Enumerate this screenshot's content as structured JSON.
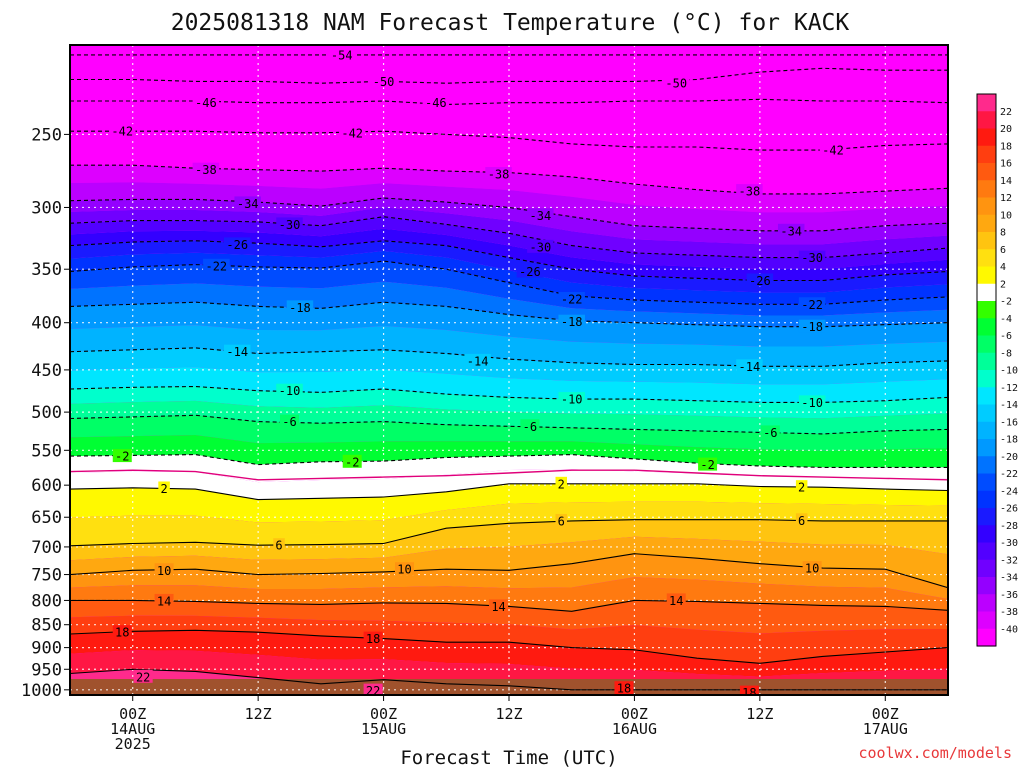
{
  "page": {
    "title": "2025081318 NAM Forecast Temperature (°C) for KACK",
    "credit": "coolwx.com/models"
  },
  "chart_data": {
    "type": "heatmap",
    "title": "2025081318 NAM Forecast Temperature (°C) for KACK",
    "xlabel": "Forecast Time (UTC)",
    "ylabel": "",
    "y_scale": "log-pressure",
    "y_axis_unit": "hPa",
    "y_ticks": [
      250,
      300,
      350,
      400,
      450,
      500,
      550,
      600,
      650,
      700,
      750,
      800,
      850,
      900,
      950,
      1000
    ],
    "ylim_hpa": [
      200,
      1013
    ],
    "x_ticks": [
      {
        "hour": 6,
        "lines": [
          "00Z",
          "14AUG",
          "2025"
        ]
      },
      {
        "hour": 18,
        "lines": [
          "12Z"
        ]
      },
      {
        "hour": 30,
        "lines": [
          "00Z",
          "15AUG"
        ]
      },
      {
        "hour": 42,
        "lines": [
          "12Z"
        ]
      },
      {
        "hour": 54,
        "lines": [
          "00Z",
          "16AUG"
        ]
      },
      {
        "hour": 66,
        "lines": [
          "12Z"
        ]
      },
      {
        "hour": 78,
        "lines": [
          "00Z",
          "17AUG"
        ]
      }
    ],
    "xlim_hours": [
      0,
      84
    ],
    "grid": true,
    "colorbar": {
      "labels": [
        22,
        20,
        18,
        16,
        14,
        12,
        10,
        8,
        6,
        4,
        2,
        -2,
        -4,
        -6,
        -8,
        -10,
        -12,
        -14,
        -16,
        -18,
        -20,
        -22,
        -24,
        -26,
        -28,
        -30,
        -32,
        -34,
        -36,
        -38,
        -40
      ],
      "colors": [
        "#ff2a8c",
        "#ff1744",
        "#ff1a10",
        "#ff3e10",
        "#ff5a10",
        "#ff7a10",
        "#ff9410",
        "#ffa810",
        "#ffc410",
        "#ffe010",
        "#fff900",
        "#ffffff",
        "#33ff00",
        "#00ff33",
        "#00ff66",
        "#00ff99",
        "#00ffcc",
        "#00e6ff",
        "#00ccff",
        "#00b3ff",
        "#0099ff",
        "#0073ff",
        "#004cff",
        "#0033ff",
        "#1a1aff",
        "#3300ff",
        "#5200ff",
        "#7000ff",
        "#9400ff",
        "#bb00ff",
        "#dd00ff",
        "#ff00ff"
      ]
    },
    "isotherms": [
      {
        "temp": -54,
        "hpa": [
          205,
          205,
          205,
          205,
          205,
          205,
          205,
          205,
          205,
          205,
          205,
          205,
          205,
          205,
          205
        ]
      },
      {
        "temp": -50,
        "hpa": [
          218,
          218,
          219,
          219,
          220,
          219,
          220,
          219,
          219,
          219,
          218,
          214,
          212,
          213,
          213
        ]
      },
      {
        "temp": -46,
        "hpa": [
          230,
          230,
          230,
          231,
          231,
          230,
          232,
          231,
          231,
          230,
          230,
          229,
          230,
          230,
          231
        ]
      },
      {
        "temp": -42,
        "hpa": [
          248,
          248,
          248,
          249,
          249,
          248,
          250,
          252,
          256,
          258,
          258,
          260,
          260,
          257,
          256
        ]
      },
      {
        "temp": -38,
        "hpa": [
          270,
          270,
          272,
          273,
          274,
          272,
          274,
          275,
          278,
          283,
          287,
          290,
          290,
          288,
          286
        ]
      },
      {
        "temp": -34,
        "hpa": [
          295,
          294,
          294,
          296,
          299,
          293,
          296,
          300,
          307,
          314,
          316,
          318,
          318,
          314,
          312
        ]
      },
      {
        "temp": -30,
        "hpa": [
          312,
          310,
          310,
          311,
          314,
          307,
          313,
          320,
          330,
          336,
          338,
          340,
          340,
          336,
          332
        ]
      },
      {
        "temp": -26,
        "hpa": [
          330,
          327,
          326,
          328,
          331,
          326,
          330,
          340,
          350,
          356,
          358,
          360,
          360,
          355,
          352
        ]
      },
      {
        "temp": -22,
        "hpa": [
          352,
          348,
          346,
          348,
          349,
          343,
          350,
          362,
          374,
          378,
          380,
          382,
          382,
          378,
          375
        ]
      },
      {
        "temp": -18,
        "hpa": [
          384,
          382,
          380,
          384,
          386,
          380,
          384,
          392,
          398,
          400,
          402,
          404,
          404,
          402,
          400
        ]
      },
      {
        "temp": -14,
        "hpa": [
          430,
          428,
          426,
          432,
          430,
          428,
          432,
          438,
          442,
          444,
          444,
          446,
          446,
          442,
          440
        ]
      },
      {
        "temp": -10,
        "hpa": [
          472,
          470,
          469,
          474,
          476,
          472,
          478,
          482,
          484,
          484,
          486,
          488,
          488,
          486,
          482
        ]
      },
      {
        "temp": -6,
        "hpa": [
          508,
          506,
          504,
          512,
          514,
          512,
          516,
          518,
          520,
          522,
          524,
          526,
          528,
          524,
          522
        ]
      },
      {
        "temp": -2,
        "hpa": [
          558,
          557,
          556,
          570,
          566,
          565,
          560,
          558,
          556,
          562,
          568,
          572,
          574,
          574,
          574
        ]
      },
      {
        "temp": 2,
        "hpa": [
          606,
          604,
          606,
          622,
          620,
          618,
          610,
          598,
          598,
          598,
          598,
          602,
          603,
          606,
          608
        ]
      },
      {
        "temp": 6,
        "hpa": [
          698,
          694,
          692,
          697,
          696,
          694,
          668,
          660,
          656,
          654,
          654,
          654,
          656,
          656,
          656
        ]
      },
      {
        "temp": 10,
        "hpa": [
          750,
          742,
          740,
          750,
          748,
          745,
          740,
          742,
          730,
          712,
          720,
          730,
          738,
          740,
          775
        ]
      },
      {
        "temp": 14,
        "hpa": [
          800,
          800,
          802,
          806,
          808,
          805,
          806,
          812,
          822,
          800,
          802,
          806,
          810,
          812,
          820
        ]
      },
      {
        "temp": 18,
        "hpa": [
          870,
          864,
          862,
          866,
          874,
          880,
          888,
          888,
          900,
          905,
          924,
          936,
          920,
          910,
          900
        ]
      },
      {
        "temp": 22,
        "hpa": [
          960,
          950,
          955,
          970,
          985,
          975,
          985,
          990,
          1000,
          1000,
          1000,
          1000,
          1000,
          1000,
          1000
        ]
      }
    ],
    "freezing_level_hpa": [
      580,
      578,
      580,
      592,
      590,
      588,
      586,
      582,
      578,
      578,
      582,
      586,
      588,
      590,
      592
    ],
    "contour_labels": [
      {
        "text": "-54",
        "hour": 26,
        "hpa": 205
      },
      {
        "text": "-50",
        "hour": 30,
        "hpa": 219
      },
      {
        "text": "-50",
        "hour": 58,
        "hpa": 220
      },
      {
        "text": "-46",
        "hour": 13,
        "hpa": 231
      },
      {
        "text": "-46",
        "hour": 35,
        "hpa": 231
      },
      {
        "text": "-42",
        "hour": 5,
        "hpa": 248
      },
      {
        "text": "-42",
        "hour": 27,
        "hpa": 249
      },
      {
        "text": "-42",
        "hour": 73,
        "hpa": 260
      },
      {
        "text": "-38",
        "hour": 13,
        "hpa": 273
      },
      {
        "text": "-38",
        "hour": 41,
        "hpa": 276
      },
      {
        "text": "-38",
        "hour": 65,
        "hpa": 288
      },
      {
        "text": "-34",
        "hour": 17,
        "hpa": 297
      },
      {
        "text": "-34",
        "hour": 45,
        "hpa": 306
      },
      {
        "text": "-34",
        "hour": 69,
        "hpa": 318
      },
      {
        "text": "-30",
        "hour": 21,
        "hpa": 313
      },
      {
        "text": "-30",
        "hour": 45,
        "hpa": 331
      },
      {
        "text": "-30",
        "hour": 71,
        "hpa": 340
      },
      {
        "text": "-26",
        "hour": 16,
        "hpa": 329
      },
      {
        "text": "-26",
        "hour": 44,
        "hpa": 352
      },
      {
        "text": "-26",
        "hour": 66,
        "hpa": 360
      },
      {
        "text": "-22",
        "hour": 14,
        "hpa": 347
      },
      {
        "text": "-22",
        "hour": 48,
        "hpa": 377
      },
      {
        "text": "-22",
        "hour": 71,
        "hpa": 382
      },
      {
        "text": "-18",
        "hour": 22,
        "hpa": 385
      },
      {
        "text": "-18",
        "hour": 48,
        "hpa": 399
      },
      {
        "text": "-18",
        "hour": 71,
        "hpa": 404
      },
      {
        "text": "-14",
        "hour": 16,
        "hpa": 430
      },
      {
        "text": "-14",
        "hour": 39,
        "hpa": 440
      },
      {
        "text": "-14",
        "hour": 65,
        "hpa": 446
      },
      {
        "text": "-10",
        "hour": 21,
        "hpa": 474
      },
      {
        "text": "-10",
        "hour": 48,
        "hpa": 484
      },
      {
        "text": "-10",
        "hour": 71,
        "hpa": 488
      },
      {
        "text": "-6",
        "hour": 21,
        "hpa": 512
      },
      {
        "text": "-6",
        "hour": 44,
        "hpa": 518
      },
      {
        "text": "-6",
        "hour": 67,
        "hpa": 526
      },
      {
        "text": "-2",
        "hour": 5,
        "hpa": 558
      },
      {
        "text": "-2",
        "hour": 27,
        "hpa": 566
      },
      {
        "text": "-2",
        "hour": 61,
        "hpa": 570
      },
      {
        "text": "2",
        "hour": 9,
        "hpa": 605
      },
      {
        "text": "2",
        "hour": 47,
        "hpa": 598
      },
      {
        "text": "2",
        "hour": 70,
        "hpa": 603
      },
      {
        "text": "6",
        "hour": 20,
        "hpa": 697
      },
      {
        "text": "6",
        "hour": 47,
        "hpa": 656
      },
      {
        "text": "6",
        "hour": 70,
        "hpa": 655
      },
      {
        "text": "10",
        "hour": 9,
        "hpa": 742
      },
      {
        "text": "10",
        "hour": 32,
        "hpa": 740
      },
      {
        "text": "10",
        "hour": 71,
        "hpa": 738
      },
      {
        "text": "14",
        "hour": 9,
        "hpa": 801
      },
      {
        "text": "14",
        "hour": 41,
        "hpa": 812
      },
      {
        "text": "14",
        "hour": 58,
        "hpa": 800
      },
      {
        "text": "18",
        "hour": 5,
        "hpa": 866
      },
      {
        "text": "18",
        "hour": 29,
        "hpa": 880
      },
      {
        "text": "18",
        "hour": 53,
        "hpa": 996
      },
      {
        "text": "18",
        "hour": 65,
        "hpa": 1007
      },
      {
        "text": "22",
        "hour": 7,
        "hpa": 968
      },
      {
        "text": "22",
        "hour": 29,
        "hpa": 1002
      }
    ]
  }
}
